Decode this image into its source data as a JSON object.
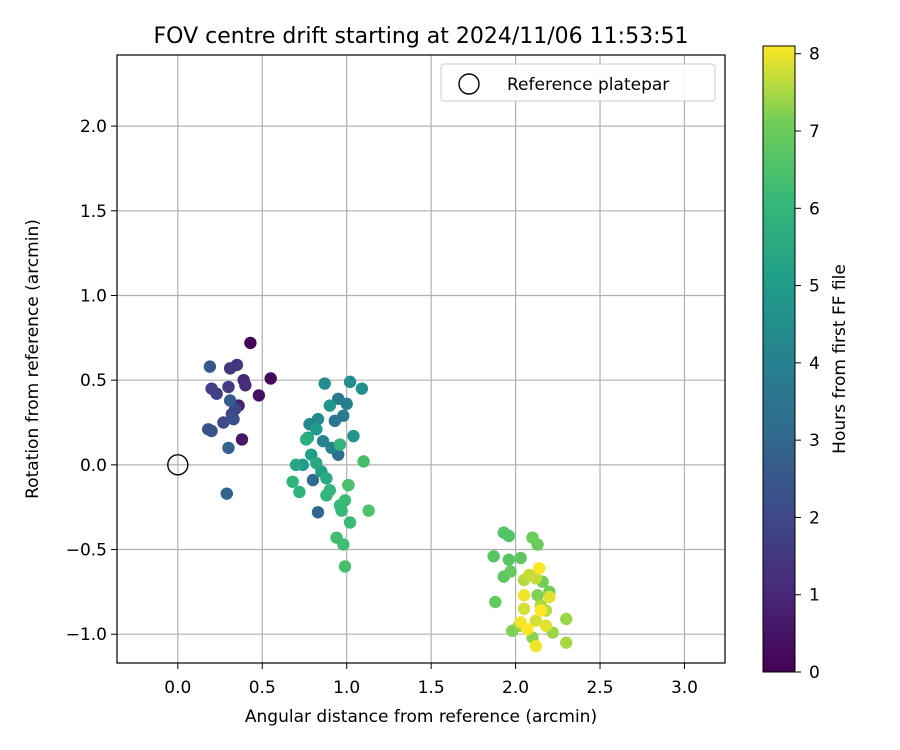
{
  "chart_data": {
    "type": "scatter",
    "title": "FOV centre drift starting at 2024/11/06 11:53:51",
    "xlabel": "Angular distance from reference (arcmin)",
    "ylabel": "Rotation from reference (arcmin)",
    "xlim": [
      -0.36,
      3.24
    ],
    "ylim": [
      -1.17,
      2.42
    ],
    "xticks": [
      0.0,
      0.5,
      1.0,
      1.5,
      2.0,
      2.5,
      3.0
    ],
    "xtick_labels": [
      "0.0",
      "0.5",
      "1.0",
      "1.5",
      "2.0",
      "2.5",
      "3.0"
    ],
    "yticks": [
      -1.0,
      -0.5,
      0.0,
      0.5,
      1.0,
      1.5,
      2.0
    ],
    "ytick_labels": [
      "−1.0",
      "−0.5",
      "0.0",
      "0.5",
      "1.0",
      "1.5",
      "2.0"
    ],
    "grid": true,
    "legend": {
      "position": "top-right",
      "entries": [
        "Reference platepar"
      ]
    },
    "reference": {
      "x": 0.0,
      "y": 0.0
    },
    "colorbar": {
      "label": "Hours from first FF file",
      "range": [
        0,
        8.1
      ],
      "ticks": [
        0,
        1,
        2,
        3,
        4,
        5,
        6,
        7,
        8
      ],
      "tick_labels": [
        "0",
        "1",
        "2",
        "3",
        "4",
        "5",
        "6",
        "7",
        "8"
      ],
      "colormap": "viridis"
    },
    "points": [
      {
        "x": 0.43,
        "y": 0.72,
        "t": 0.1
      },
      {
        "x": 0.55,
        "y": 0.51,
        "t": 0.2
      },
      {
        "x": 0.48,
        "y": 0.41,
        "t": 0.4
      },
      {
        "x": 0.38,
        "y": 0.15,
        "t": 0.6
      },
      {
        "x": 0.36,
        "y": 0.35,
        "t": 0.8
      },
      {
        "x": 0.39,
        "y": 0.5,
        "t": 1.0
      },
      {
        "x": 0.4,
        "y": 0.47,
        "t": 1.2
      },
      {
        "x": 0.31,
        "y": 0.57,
        "t": 1.4
      },
      {
        "x": 0.35,
        "y": 0.59,
        "t": 1.5
      },
      {
        "x": 0.3,
        "y": 0.46,
        "t": 1.6
      },
      {
        "x": 0.2,
        "y": 0.45,
        "t": 1.7
      },
      {
        "x": 0.23,
        "y": 0.42,
        "t": 1.8
      },
      {
        "x": 0.32,
        "y": 0.3,
        "t": 1.9
      },
      {
        "x": 0.34,
        "y": 0.33,
        "t": 2.0
      },
      {
        "x": 0.27,
        "y": 0.25,
        "t": 2.1
      },
      {
        "x": 0.33,
        "y": 0.27,
        "t": 2.2
      },
      {
        "x": 0.18,
        "y": 0.21,
        "t": 2.3
      },
      {
        "x": 0.2,
        "y": 0.2,
        "t": 2.4
      },
      {
        "x": 0.19,
        "y": 0.58,
        "t": 2.5
      },
      {
        "x": 0.31,
        "y": 0.38,
        "t": 2.6
      },
      {
        "x": 0.3,
        "y": 0.1,
        "t": 2.8
      },
      {
        "x": 0.29,
        "y": -0.17,
        "t": 2.9
      },
      {
        "x": 0.83,
        "y": -0.28,
        "t": 3.0
      },
      {
        "x": 0.8,
        "y": -0.09,
        "t": 3.2
      },
      {
        "x": 0.95,
        "y": 0.06,
        "t": 3.3
      },
      {
        "x": 1.01,
        "y": -0.12,
        "t": 3.4
      },
      {
        "x": 0.93,
        "y": 0.26,
        "t": 3.6
      },
      {
        "x": 0.98,
        "y": 0.29,
        "t": 3.7
      },
      {
        "x": 0.95,
        "y": 0.39,
        "t": 3.8
      },
      {
        "x": 1.0,
        "y": 0.36,
        "t": 3.9
      },
      {
        "x": 0.91,
        "y": 0.1,
        "t": 4.0
      },
      {
        "x": 0.86,
        "y": 0.14,
        "t": 4.1
      },
      {
        "x": 0.78,
        "y": 0.24,
        "t": 4.2
      },
      {
        "x": 0.83,
        "y": 0.27,
        "t": 4.3
      },
      {
        "x": 0.87,
        "y": 0.48,
        "t": 4.4
      },
      {
        "x": 1.02,
        "y": 0.49,
        "t": 4.5
      },
      {
        "x": 1.09,
        "y": 0.45,
        "t": 4.6
      },
      {
        "x": 1.04,
        "y": 0.17,
        "t": 4.7
      },
      {
        "x": 0.9,
        "y": 0.35,
        "t": 4.8
      },
      {
        "x": 0.82,
        "y": 0.21,
        "t": 4.9
      },
      {
        "x": 0.74,
        "y": 0.0,
        "t": 5.0
      },
      {
        "x": 0.79,
        "y": 0.06,
        "t": 5.1
      },
      {
        "x": 0.85,
        "y": -0.04,
        "t": 5.2
      },
      {
        "x": 0.77,
        "y": 0.16,
        "t": 5.3
      },
      {
        "x": 0.7,
        "y": 0.0,
        "t": 5.4
      },
      {
        "x": 0.82,
        "y": 0.01,
        "t": 5.5
      },
      {
        "x": 0.88,
        "y": -0.08,
        "t": 5.6
      },
      {
        "x": 0.76,
        "y": 0.15,
        "t": 5.7
      },
      {
        "x": 0.72,
        "y": -0.16,
        "t": 5.8
      },
      {
        "x": 0.68,
        "y": -0.1,
        "t": 5.9
      },
      {
        "x": 0.88,
        "y": -0.18,
        "t": 5.9
      },
      {
        "x": 0.9,
        "y": -0.15,
        "t": 6.0
      },
      {
        "x": 0.96,
        "y": 0.12,
        "t": 6.0
      },
      {
        "x": 0.97,
        "y": -0.27,
        "t": 6.1
      },
      {
        "x": 0.96,
        "y": -0.24,
        "t": 6.1
      },
      {
        "x": 0.99,
        "y": -0.21,
        "t": 6.2
      },
      {
        "x": 1.02,
        "y": -0.34,
        "t": 6.2
      },
      {
        "x": 0.94,
        "y": -0.43,
        "t": 6.3
      },
      {
        "x": 0.98,
        "y": -0.47,
        "t": 6.3
      },
      {
        "x": 0.99,
        "y": -0.6,
        "t": 6.4
      },
      {
        "x": 1.1,
        "y": 0.02,
        "t": 6.4
      },
      {
        "x": 1.13,
        "y": -0.27,
        "t": 6.5
      },
      {
        "x": 1.01,
        "y": -0.12,
        "t": 6.5
      },
      {
        "x": 1.93,
        "y": -0.4,
        "t": 6.6
      },
      {
        "x": 1.96,
        "y": -0.42,
        "t": 6.6
      },
      {
        "x": 1.87,
        "y": -0.54,
        "t": 6.7
      },
      {
        "x": 1.96,
        "y": -0.56,
        "t": 6.7
      },
      {
        "x": 2.03,
        "y": -0.55,
        "t": 6.8
      },
      {
        "x": 1.93,
        "y": -0.66,
        "t": 6.8
      },
      {
        "x": 1.97,
        "y": -0.63,
        "t": 6.9
      },
      {
        "x": 1.88,
        "y": -0.81,
        "t": 6.9
      },
      {
        "x": 2.1,
        "y": -0.43,
        "t": 7.0
      },
      {
        "x": 2.13,
        "y": -0.47,
        "t": 7.0
      },
      {
        "x": 2.16,
        "y": -0.69,
        "t": 7.1
      },
      {
        "x": 2.2,
        "y": -0.75,
        "t": 7.1
      },
      {
        "x": 2.13,
        "y": -0.77,
        "t": 7.2
      },
      {
        "x": 1.98,
        "y": -0.98,
        "t": 7.2
      },
      {
        "x": 2.02,
        "y": -0.95,
        "t": 7.3
      },
      {
        "x": 2.1,
        "y": -1.02,
        "t": 7.3
      },
      {
        "x": 2.22,
        "y": -0.99,
        "t": 7.4
      },
      {
        "x": 2.3,
        "y": -0.91,
        "t": 7.4
      },
      {
        "x": 2.3,
        "y": -1.05,
        "t": 7.5
      },
      {
        "x": 2.15,
        "y": -0.83,
        "t": 7.5
      },
      {
        "x": 2.18,
        "y": -0.86,
        "t": 7.6
      },
      {
        "x": 2.05,
        "y": -0.68,
        "t": 7.6
      },
      {
        "x": 2.08,
        "y": -0.65,
        "t": 7.7
      },
      {
        "x": 2.12,
        "y": -0.67,
        "t": 7.7
      },
      {
        "x": 2.05,
        "y": -0.85,
        "t": 7.8
      },
      {
        "x": 2.12,
        "y": -0.92,
        "t": 7.8
      },
      {
        "x": 2.2,
        "y": -0.78,
        "t": 7.9
      },
      {
        "x": 2.18,
        "y": -0.95,
        "t": 7.9
      },
      {
        "x": 2.12,
        "y": -1.07,
        "t": 8.0
      },
      {
        "x": 2.05,
        "y": -0.77,
        "t": 8.0
      },
      {
        "x": 2.03,
        "y": -0.93,
        "t": 8.0
      },
      {
        "x": 2.14,
        "y": -0.61,
        "t": 8.1
      },
      {
        "x": 2.15,
        "y": -0.86,
        "t": 8.1
      },
      {
        "x": 2.07,
        "y": -0.97,
        "t": 8.1
      }
    ]
  }
}
